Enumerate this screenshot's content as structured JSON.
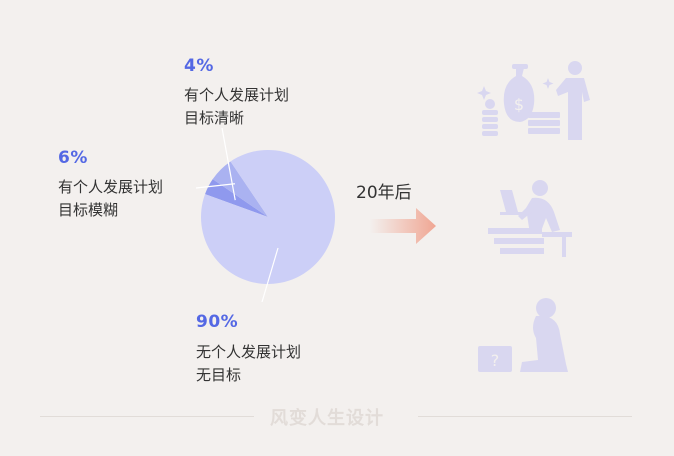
{
  "chart_data": {
    "type": "pie",
    "slices": [
      {
        "pct_label": "4%",
        "value": 4,
        "line1": "有个人发展计划",
        "line2": "目标清晰"
      },
      {
        "pct_label": "6%",
        "value": 6,
        "line1": "有个人发展计划",
        "line2": "目标模糊"
      },
      {
        "pct_label": "90%",
        "value": 90,
        "line1": "无个人发展计划",
        "line2": "无目标"
      }
    ]
  },
  "arrow_label": "20年后",
  "footer": "风变人生设计",
  "colors": {
    "accent_text": "#5468e4",
    "slice_clear": "#8f99ee",
    "slice_vague": "#aab2f1",
    "slice_none": "#cccff7",
    "arrow": "#f0a693",
    "icon_fill": "#d9d7f0"
  },
  "icons": [
    "money-success-icon",
    "desk-worker-icon",
    "kneeling-despair-icon"
  ]
}
